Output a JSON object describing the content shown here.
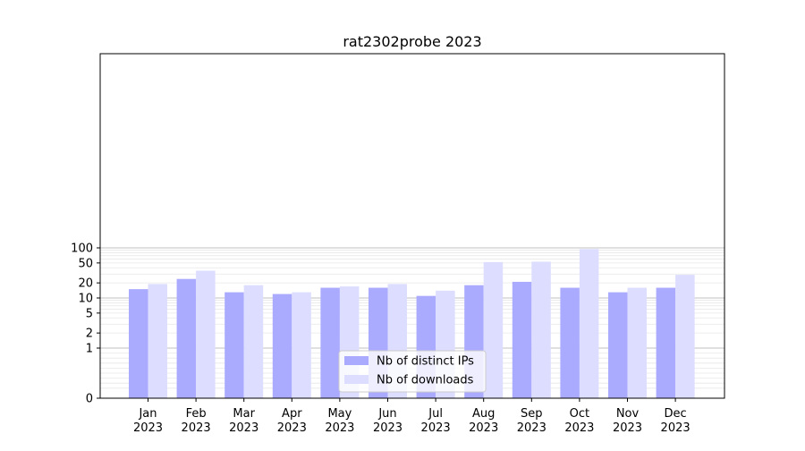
{
  "chart_data": {
    "type": "bar",
    "title": "rat2302probe 2023",
    "xlabel": "",
    "ylabel": "",
    "yscale": "symlog",
    "ylim": [
      0,
      120
    ],
    "yticks": [
      {
        "value": 0,
        "label": "0"
      },
      {
        "value": 1,
        "label": "1"
      },
      {
        "value": 2,
        "label": "2"
      },
      {
        "value": 5,
        "label": "5"
      },
      {
        "value": 10,
        "label": "10"
      },
      {
        "value": 20,
        "label": "20"
      },
      {
        "value": 50,
        "label": "50"
      },
      {
        "value": 100,
        "label": "100"
      }
    ],
    "categories": [
      {
        "month": "Jan",
        "year": "2023"
      },
      {
        "month": "Feb",
        "year": "2023"
      },
      {
        "month": "Mar",
        "year": "2023"
      },
      {
        "month": "Apr",
        "year": "2023"
      },
      {
        "month": "May",
        "year": "2023"
      },
      {
        "month": "Jun",
        "year": "2023"
      },
      {
        "month": "Jul",
        "year": "2023"
      },
      {
        "month": "Aug",
        "year": "2023"
      },
      {
        "month": "Sep",
        "year": "2023"
      },
      {
        "month": "Oct",
        "year": "2023"
      },
      {
        "month": "Nov",
        "year": "2023"
      },
      {
        "month": "Dec",
        "year": "2023"
      }
    ],
    "series": [
      {
        "name": "Nb of distinct IPs",
        "color": "#aaaaff",
        "values": [
          15,
          24,
          13,
          12,
          16,
          16,
          11,
          18,
          21,
          16,
          13,
          16
        ]
      },
      {
        "name": "Nb of downloads",
        "color": "#ddddff",
        "values": [
          19,
          35,
          18,
          13,
          17,
          19,
          14,
          52,
          53,
          95,
          16,
          29
        ]
      }
    ],
    "grid": true,
    "legend_position": "bottom-center"
  }
}
